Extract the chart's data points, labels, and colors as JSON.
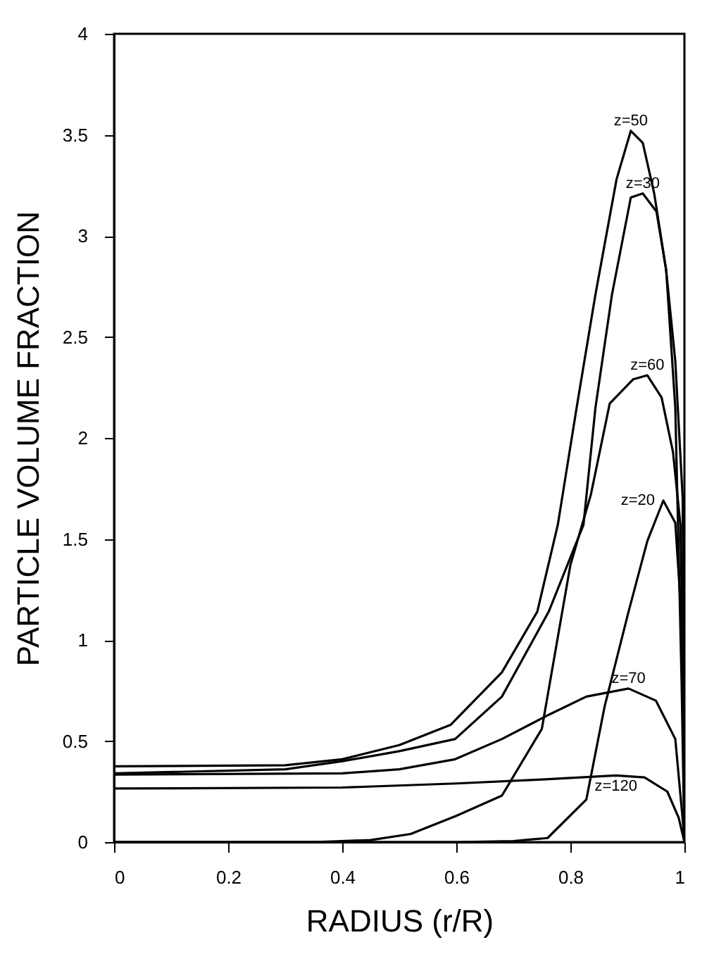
{
  "chart_data": {
    "type": "line",
    "xlabel": "RADIUS    (r/R)",
    "ylabel": "PARTICLE VOLUME FRACTION",
    "xlim": [
      0,
      1
    ],
    "ylim": [
      0,
      4
    ],
    "xticks": [
      0,
      0.2,
      0.4,
      0.6,
      0.8,
      1
    ],
    "yticks": [
      0,
      0.5,
      1,
      1.5,
      2,
      2.5,
      3,
      3.5,
      4
    ],
    "grid": false,
    "legend": false,
    "marker": "none",
    "line_style": "solid",
    "series": [
      {
        "name": "z=50",
        "color": "#000000",
        "x": [
          0,
          0.3,
          0.4,
          0.5,
          0.59,
          0.68,
          0.742,
          0.778,
          0.811,
          0.844,
          0.881,
          0.906,
          0.927,
          0.947,
          0.968,
          0.984,
          0.997,
          1
        ],
        "values": [
          0.375,
          0.38,
          0.41,
          0.48,
          0.58,
          0.84,
          1.14,
          1.57,
          2.15,
          2.71,
          3.28,
          3.52,
          3.46,
          3.21,
          2.83,
          2.38,
          1.7,
          0
        ]
      },
      {
        "name": "z=30",
        "color": "#000000",
        "x": [
          0,
          0.3,
          0.4,
          0.5,
          0.598,
          0.68,
          0.762,
          0.823,
          0.844,
          0.873,
          0.906,
          0.927,
          0.951,
          0.968,
          0.984,
          0.995,
          1
        ],
        "values": [
          0.34,
          0.36,
          0.4,
          0.45,
          0.51,
          0.72,
          1.14,
          1.57,
          2.15,
          2.71,
          3.19,
          3.21,
          3.12,
          2.83,
          2.15,
          0.8,
          0
        ]
      },
      {
        "name": "z=60",
        "color": "#000000",
        "x": [
          0,
          0.35,
          0.45,
          0.52,
          0.6,
          0.68,
          0.75,
          0.8,
          0.836,
          0.869,
          0.91,
          0.935,
          0.96,
          0.98,
          0.993,
          0.998,
          1
        ],
        "values": [
          0,
          0,
          0.01,
          0.04,
          0.13,
          0.23,
          0.56,
          1.37,
          1.72,
          2.17,
          2.29,
          2.31,
          2.2,
          1.93,
          1.57,
          0.8,
          0
        ]
      },
      {
        "name": "z=70",
        "color": "#000000",
        "x": [
          0,
          0.4,
          0.5,
          0.598,
          0.68,
          0.762,
          0.828,
          0.902,
          0.95,
          0.984,
          0.998,
          1
        ],
        "values": [
          0.334,
          0.34,
          0.36,
          0.41,
          0.51,
          0.63,
          0.72,
          0.76,
          0.7,
          0.51,
          0.08,
          0
        ]
      },
      {
        "name": "z=120",
        "color": "#000000",
        "x": [
          0,
          0.4,
          0.6,
          0.75,
          0.88,
          0.93,
          0.97,
          0.99,
          1
        ],
        "values": [
          0.265,
          0.27,
          0.29,
          0.31,
          0.33,
          0.32,
          0.25,
          0.12,
          0
        ]
      },
      {
        "name": "z=20",
        "color": "#000000",
        "x": [
          0,
          0.6,
          0.7,
          0.76,
          0.828,
          0.86,
          0.902,
          0.935,
          0.963,
          0.984,
          0.997,
          1
        ],
        "values": [
          0,
          0,
          0.005,
          0.02,
          0.21,
          0.67,
          1.14,
          1.49,
          1.69,
          1.58,
          1.02,
          0
        ]
      }
    ]
  }
}
